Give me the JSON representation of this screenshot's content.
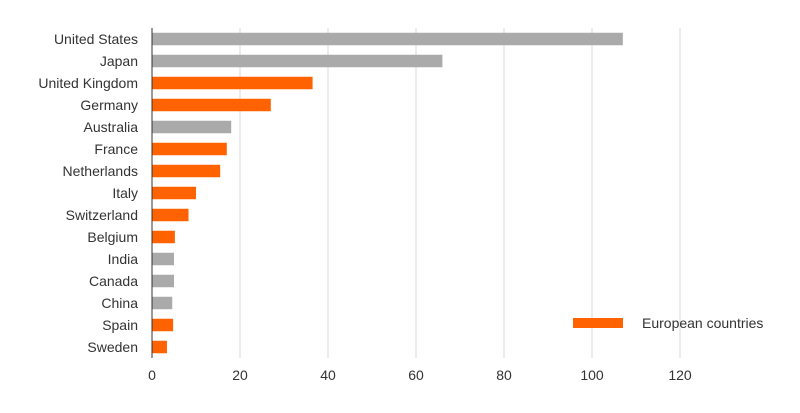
{
  "chart_data": {
    "type": "bar",
    "orientation": "horizontal",
    "title": "",
    "xlabel": "",
    "ylabel": "",
    "xlim": [
      0,
      140
    ],
    "xticks": [
      0,
      20,
      40,
      60,
      80,
      100,
      120
    ],
    "grid": "vertical",
    "categories": [
      "United States",
      "Japan",
      "United Kingdom",
      "Germany",
      "Australia",
      "France",
      "Netherlands",
      "Italy",
      "Switzerland",
      "Belgium",
      "India",
      "Canada",
      "China",
      "Spain",
      "Sweden"
    ],
    "values": [
      107,
      66,
      36.5,
      27,
      18,
      17,
      15.5,
      10,
      8.3,
      5.2,
      5,
      5,
      4.6,
      4.8,
      3.4
    ],
    "european": [
      false,
      false,
      true,
      true,
      false,
      true,
      true,
      true,
      true,
      true,
      false,
      false,
      false,
      true,
      true
    ],
    "colors": {
      "european": "#ff6200",
      "other": "#aaaaaa",
      "grid": "#d9d9d9",
      "axis": "#333333"
    },
    "legend": {
      "label": "European countries",
      "color": "#ff6200",
      "position": "bottom-right"
    }
  }
}
